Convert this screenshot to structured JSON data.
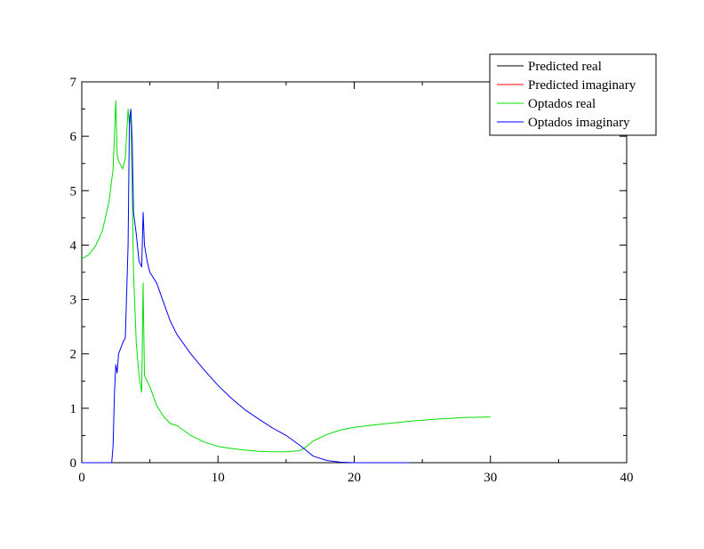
{
  "chart_data": {
    "type": "line",
    "title": "",
    "xlabel": "",
    "ylabel": "",
    "xlim": [
      0,
      40
    ],
    "ylim": [
      0,
      7
    ],
    "x_ticks": [
      0,
      10,
      20,
      30,
      40
    ],
    "y_ticks": [
      0,
      1,
      2,
      3,
      4,
      5,
      6,
      7
    ],
    "x_tick_labels": [
      "0",
      "10",
      "20",
      "30",
      "40"
    ],
    "y_tick_labels": [
      "0",
      "1",
      "2",
      "3",
      "4",
      "5",
      "6",
      "7"
    ],
    "grid": false,
    "legend_position": "top-right",
    "series": [
      {
        "name": "Predicted real",
        "color": "#000000",
        "x": [],
        "y": []
      },
      {
        "name": "Predicted imaginary",
        "color": "#ff0000",
        "x": [],
        "y": []
      },
      {
        "name": "Optados real",
        "color": "#00e000",
        "x": [
          0,
          0.5,
          1.0,
          1.5,
          2.0,
          2.3,
          2.5,
          2.6,
          2.7,
          2.8,
          3.0,
          3.2,
          3.4,
          3.5,
          3.6,
          3.7,
          3.8,
          4.0,
          4.2,
          4.4,
          4.5,
          4.6,
          5.0,
          5.5,
          6.0,
          6.5,
          7.0,
          8.0,
          9.0,
          10.0,
          11.0,
          12.0,
          13.0,
          14.0,
          15.0,
          16.0,
          16.5,
          17.0,
          18.0,
          19.0,
          20.0,
          22.0,
          24.0,
          26.0,
          28.0,
          30.0
        ],
        "y": [
          3.75,
          3.82,
          3.98,
          4.25,
          4.8,
          5.4,
          6.65,
          5.65,
          5.55,
          5.5,
          5.4,
          5.6,
          6.5,
          6.2,
          6.4,
          5.0,
          3.5,
          2.2,
          1.6,
          1.3,
          3.3,
          1.6,
          1.4,
          1.05,
          0.85,
          0.72,
          0.68,
          0.5,
          0.38,
          0.3,
          0.26,
          0.23,
          0.21,
          0.2,
          0.2,
          0.22,
          0.3,
          0.4,
          0.52,
          0.6,
          0.65,
          0.71,
          0.76,
          0.8,
          0.83,
          0.84
        ]
      },
      {
        "name": "Optados imaginary",
        "color": "#0000ff",
        "x": [
          0,
          2.2,
          2.3,
          2.4,
          2.5,
          2.6,
          2.7,
          3.0,
          3.2,
          3.4,
          3.5,
          3.6,
          3.7,
          3.8,
          4.0,
          4.2,
          4.4,
          4.5,
          4.6,
          4.8,
          5.0,
          5.5,
          6.0,
          6.5,
          7.0,
          8.0,
          9.0,
          10.0,
          11.0,
          12.0,
          13.0,
          14.0,
          15.0,
          16.0,
          17.0,
          18.0,
          19.0,
          20.0,
          22.0,
          24.0
        ],
        "y": [
          0,
          0,
          0.3,
          1.3,
          1.8,
          1.65,
          2.0,
          2.2,
          2.3,
          4.0,
          6.3,
          6.5,
          5.9,
          4.6,
          4.2,
          3.7,
          3.6,
          4.6,
          4.0,
          3.7,
          3.5,
          3.3,
          2.95,
          2.6,
          2.35,
          2.0,
          1.7,
          1.42,
          1.18,
          0.97,
          0.8,
          0.64,
          0.5,
          0.32,
          0.12,
          0.04,
          0.01,
          0,
          0,
          0
        ]
      }
    ]
  }
}
